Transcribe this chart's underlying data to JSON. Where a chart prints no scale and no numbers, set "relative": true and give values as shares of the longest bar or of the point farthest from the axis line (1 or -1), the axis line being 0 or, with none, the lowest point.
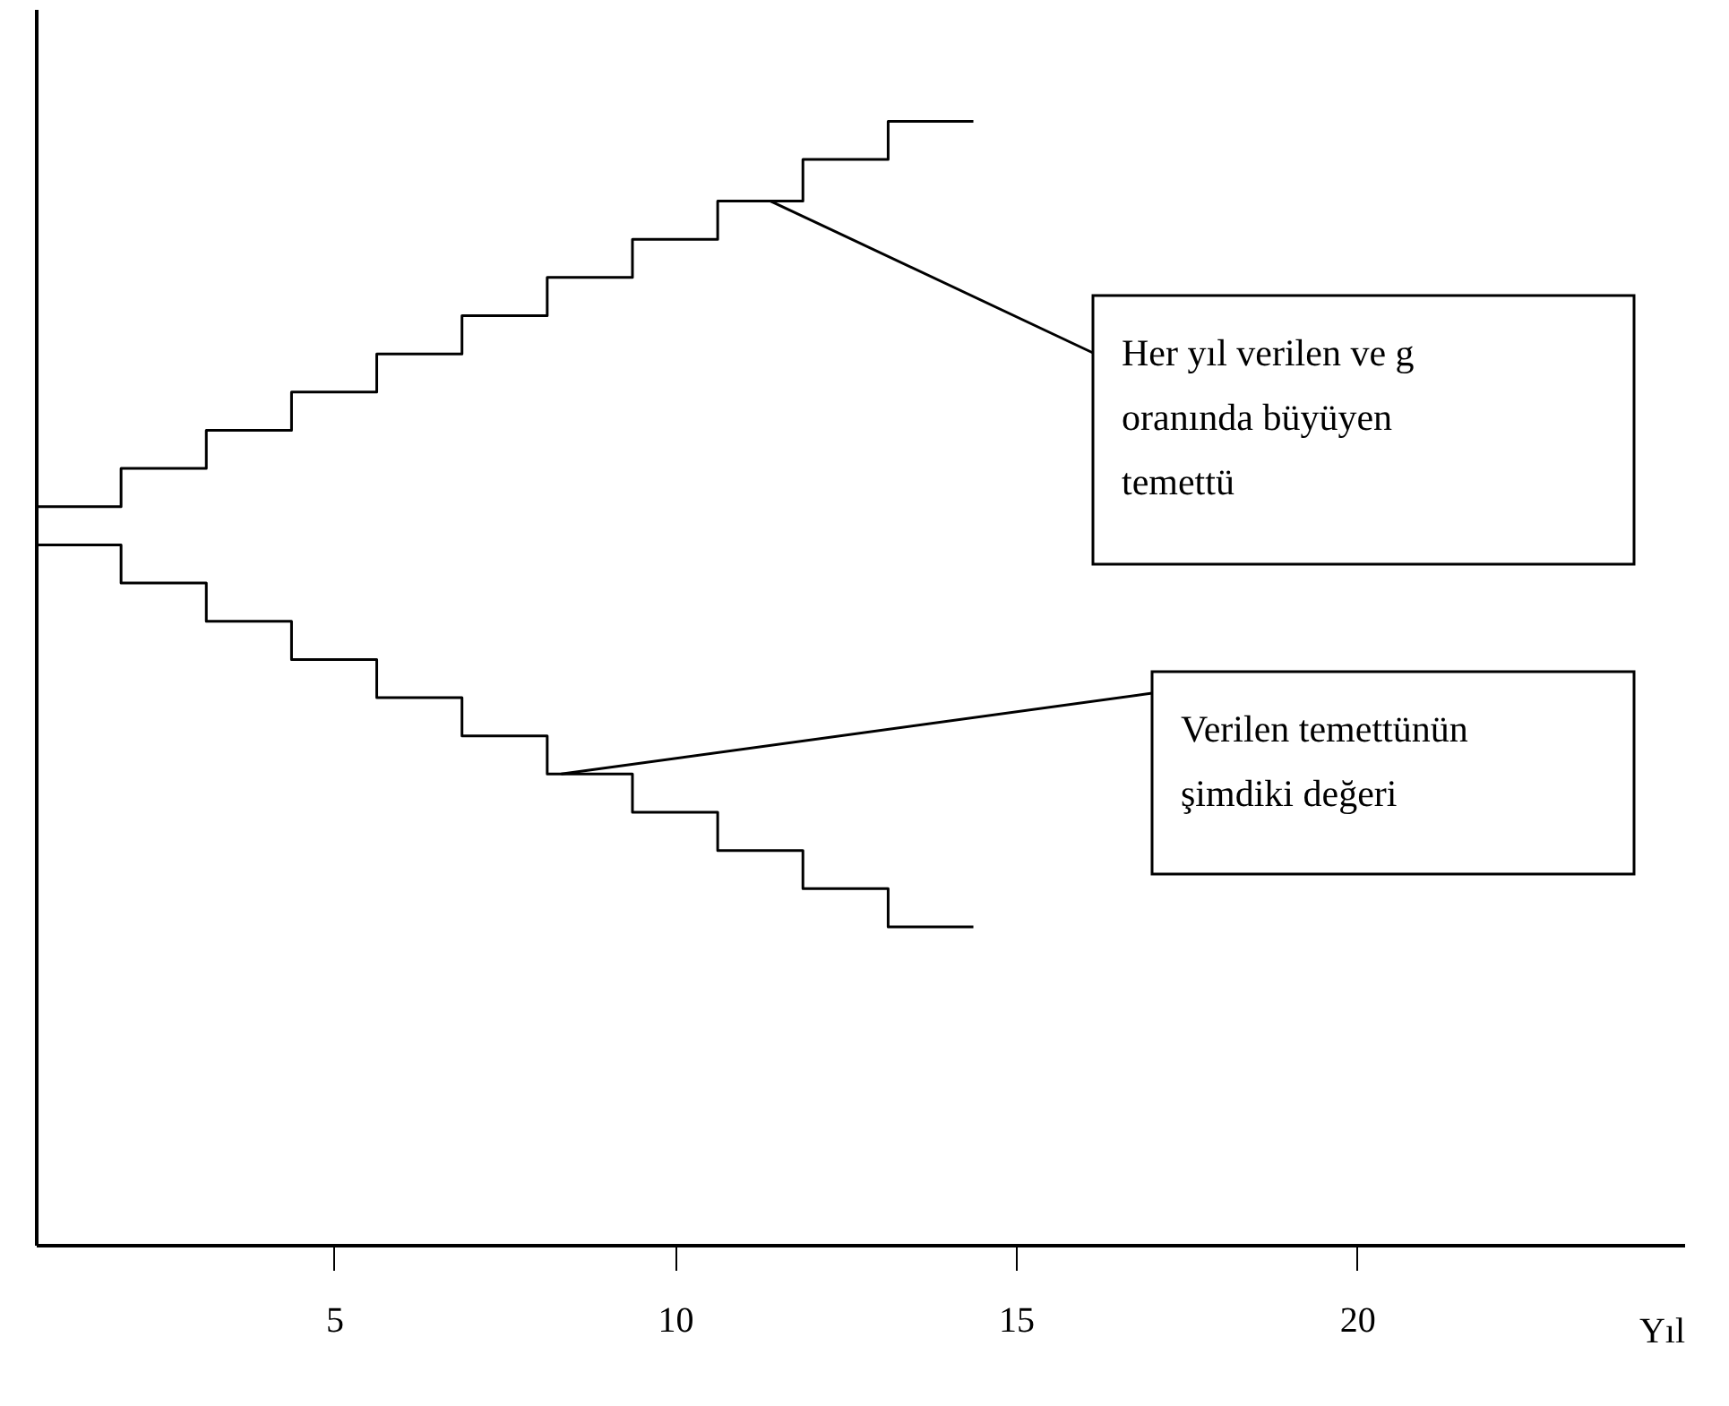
{
  "chart_data": {
    "type": "step",
    "relative": true,
    "xlabel": "Yıl",
    "xlim": [
      0.625,
      24.8
    ],
    "xticks": [
      5,
      10,
      15,
      20
    ],
    "tick_labels": "x",
    "grid": false,
    "legend": false,
    "line_style": "solid",
    "marker": "none",
    "x": [
      0.625,
      1.875,
      3.125,
      4.375,
      5.625,
      6.875,
      8.125,
      9.375,
      10.625,
      11.875,
      13.125,
      14.375
    ],
    "series": [
      {
        "color": "#000000",
        "values": [
          0.657,
          0.691,
          0.725,
          0.759,
          0.793,
          0.827,
          0.861,
          0.895,
          0.929,
          0.966,
          1.0,
          1.0
        ]
      },
      {
        "color": "#000000",
        "values": [
          0.623,
          0.589,
          0.555,
          0.521,
          0.487,
          0.453,
          0.419,
          0.385,
          0.351,
          0.317,
          0.283,
          0.283
        ]
      }
    ],
    "annotations": [
      {
        "text": "Her yıl verilen ve g oranında büyüyen temettü",
        "x": 11.4,
        "y": 0.929
      },
      {
        "text": "Verilen temettünün şimdiki değeri",
        "x": 8.33,
        "y": 0.419
      }
    ]
  }
}
